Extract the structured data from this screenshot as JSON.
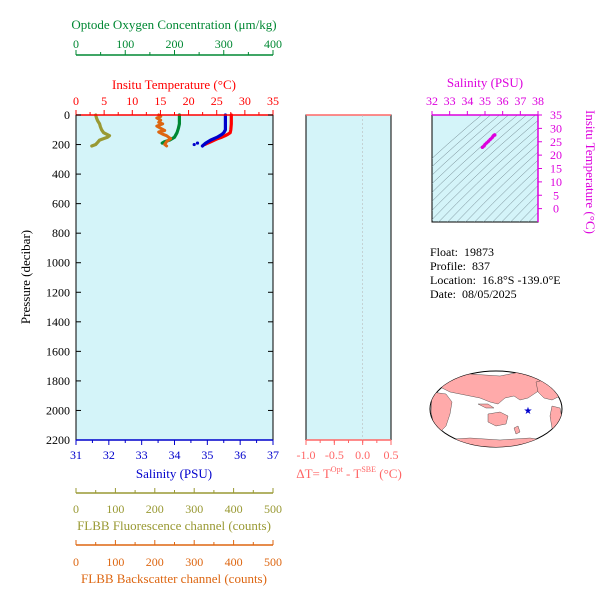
{
  "colors": {
    "panel_bg": "#d4f4f9",
    "temperature": "#ff0000",
    "salinity": "#0000cc",
    "oxygen": "#008833",
    "fluorescence": "#999933",
    "backscatter": "#dd6611",
    "delta_t": "#ff6666",
    "ts_diagram": "#dd00dd",
    "map_land": "#ffaaaa",
    "map_ocean": "#ffffff",
    "float_marker": "#0000cc"
  },
  "labels": {
    "oxygen_axis": "Optode Oxygen Concentration (μm/kg)",
    "temperature_axis": "Insitu Temperature (°C)",
    "pressure_axis": "Pressure (decibar)",
    "salinity_axis": "Salinity (PSU)",
    "delta_t_axis": "ΔT= T",
    "delta_t_sup1": "Opt",
    "delta_t_mid": " - T",
    "delta_t_sup2": "SBE",
    "delta_t_unit": " (°C)",
    "fluorescence_axis": "FLBB Fluorescence channel (counts)",
    "backscatter_axis": "FLBB Backscatter channel (counts)",
    "ts_salinity_axis": "Salinity (PSU)",
    "ts_temperature_axis": "Insitu Temperature (°C)"
  },
  "info": {
    "float_label": "Float:",
    "float_value": "19873",
    "profile_label": "Profile:",
    "profile_value": "837",
    "location_label": "Location:",
    "location_value": "16.8°S  -139.0°E",
    "date_label": "Date:",
    "date_value": "08/05/2025"
  },
  "chart_data": [
    {
      "type": "line",
      "name": "profile",
      "pressure_ticks": [
        0,
        200,
        400,
        600,
        800,
        1000,
        1200,
        1400,
        1600,
        1800,
        2000,
        2200
      ],
      "ylim": [
        2200,
        0
      ],
      "axes": {
        "oxygen": {
          "ticks": [
            0,
            100,
            200,
            300,
            400
          ],
          "lim": [
            0,
            400
          ]
        },
        "temperature": {
          "ticks": [
            0,
            5,
            10,
            15,
            20,
            25,
            30,
            35
          ],
          "lim": [
            0,
            35
          ]
        },
        "salinity": {
          "ticks": [
            31,
            32,
            33,
            34,
            35,
            36,
            37
          ],
          "lim": [
            31,
            37
          ]
        },
        "fluorescence": {
          "ticks": [
            0,
            100,
            200,
            300,
            400,
            500
          ],
          "lim": [
            0,
            500
          ]
        },
        "backscatter": {
          "ticks": [
            0,
            100,
            200,
            300,
            400,
            500
          ],
          "lim": [
            0,
            500
          ]
        }
      },
      "series": [
        {
          "key": "temperature",
          "axis": "temperature",
          "points": [
            [
              27.6,
              0
            ],
            [
              27.6,
              20
            ],
            [
              27.6,
              60
            ],
            [
              27.5,
              100
            ],
            [
              27.4,
              120
            ],
            [
              27.0,
              130
            ],
            [
              26.5,
              140
            ],
            [
              25.9,
              150
            ],
            [
              25.2,
              160
            ],
            [
              24.6,
              170
            ],
            [
              24.0,
              180
            ],
            [
              23.4,
              190
            ],
            [
              22.9,
              200
            ]
          ]
        },
        {
          "key": "salinity",
          "axis": "salinity",
          "points": [
            [
              35.55,
              0
            ],
            [
              35.55,
              20
            ],
            [
              35.55,
              60
            ],
            [
              35.55,
              100
            ],
            [
              35.5,
              120
            ],
            [
              35.45,
              130
            ],
            [
              35.3,
              150
            ],
            [
              35.1,
              170
            ],
            [
              34.95,
              190
            ],
            [
              34.85,
              210
            ]
          ]
        },
        {
          "key": "oxygen",
          "axis": "oxygen",
          "points": [
            [
              210,
              0
            ],
            [
              210,
              30
            ],
            [
              210,
              60
            ],
            [
              208,
              90
            ],
            [
              205,
              120
            ],
            [
              200,
              150
            ],
            [
              190,
              170
            ],
            [
              180,
              180
            ],
            [
              175,
              190
            ]
          ]
        },
        {
          "key": "fluorescence",
          "axis": "fluorescence",
          "points": [
            [
              50,
              0
            ],
            [
              52,
              20
            ],
            [
              55,
              40
            ],
            [
              60,
              60
            ],
            [
              62,
              80
            ],
            [
              65,
              100
            ],
            [
              70,
              120
            ],
            [
              85,
              140
            ],
            [
              80,
              150
            ],
            [
              70,
              160
            ],
            [
              60,
              170
            ],
            [
              55,
              185
            ],
            [
              50,
              200
            ],
            [
              40,
              210
            ]
          ]
        },
        {
          "key": "backscatter",
          "axis": "backscatter",
          "points": [
            [
              210,
              0
            ],
            [
              215,
              10
            ],
            [
              205,
              20
            ],
            [
              215,
              35
            ],
            [
              210,
              50
            ],
            [
              220,
              60
            ],
            [
              205,
              75
            ],
            [
              215,
              90
            ],
            [
              225,
              105
            ],
            [
              210,
              115
            ],
            [
              220,
              130
            ],
            [
              230,
              140
            ],
            [
              235,
              150
            ],
            [
              240,
              160
            ],
            [
              235,
              170
            ],
            [
              230,
              180
            ],
            [
              225,
              200
            ],
            [
              230,
              210
            ]
          ]
        }
      ]
    },
    {
      "type": "line",
      "name": "delta_t",
      "xlim": [
        -1.0,
        0.5
      ],
      "ticks": [
        -1.0,
        -0.5,
        0,
        0.5
      ],
      "tick_labels": [
        "-1.0",
        "-0.5",
        "0.0",
        "0.5"
      ],
      "ylim": [
        2200,
        0
      ],
      "series": []
    },
    {
      "type": "scatter",
      "name": "ts_diagram",
      "xlim": [
        32,
        38
      ],
      "ylim": [
        -5,
        35
      ],
      "x_ticks": [
        32,
        33,
        34,
        35,
        36,
        37,
        38
      ],
      "y_ticks": [
        0,
        5,
        10,
        15,
        20,
        25,
        30,
        35
      ],
      "points": [
        [
          35.55,
          27.6
        ],
        [
          35.55,
          27.5
        ],
        [
          35.5,
          27.4
        ],
        [
          35.45,
          27.0
        ],
        [
          35.4,
          26.5
        ],
        [
          35.3,
          25.9
        ],
        [
          35.2,
          25.2
        ],
        [
          35.1,
          24.6
        ],
        [
          35.0,
          24.0
        ],
        [
          34.95,
          23.4
        ],
        [
          34.85,
          22.9
        ]
      ]
    }
  ]
}
